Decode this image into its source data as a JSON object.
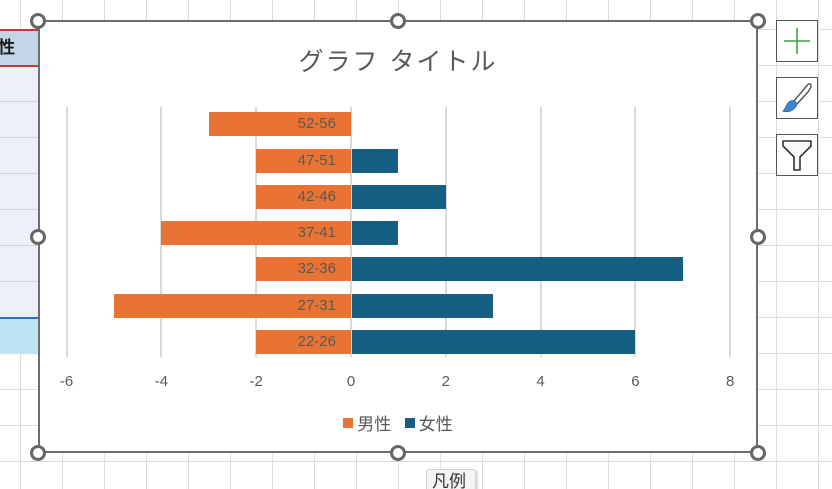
{
  "sheet": {
    "header_cell_text": "性",
    "colors": {
      "header_bg": "#c3d5e6",
      "header_border": "#c4393b",
      "cell_bg": "#eaeff8",
      "selected_bg": "#bfe3f3"
    }
  },
  "chart_data": {
    "type": "bar",
    "orientation": "horizontal",
    "title": "グラフ タイトル",
    "categories": [
      "22-26",
      "27-31",
      "32-36",
      "37-41",
      "42-46",
      "47-51",
      "52-56"
    ],
    "series": [
      {
        "name": "男性",
        "color": "#e87333",
        "values": [
          -2,
          -5,
          -2,
          -4,
          -2,
          -2,
          -3
        ]
      },
      {
        "name": "女性",
        "color": "#175f82",
        "values": [
          6,
          3,
          7,
          1,
          2,
          1,
          0
        ]
      }
    ],
    "xlabel": "",
    "ylabel": "",
    "xlim": [
      -6,
      8
    ],
    "x_ticks": [
      "-6",
      "-4",
      "-2",
      "0",
      "2",
      "4",
      "6",
      "8"
    ],
    "grid": true,
    "legend_position": "bottom"
  },
  "side_buttons": [
    {
      "name": "chart-elements",
      "icon": "plus-icon"
    },
    {
      "name": "chart-styles",
      "icon": "paintbrush-icon"
    },
    {
      "name": "chart-filters",
      "icon": "funnel-icon"
    }
  ],
  "tooltip": {
    "text": "凡例"
  }
}
